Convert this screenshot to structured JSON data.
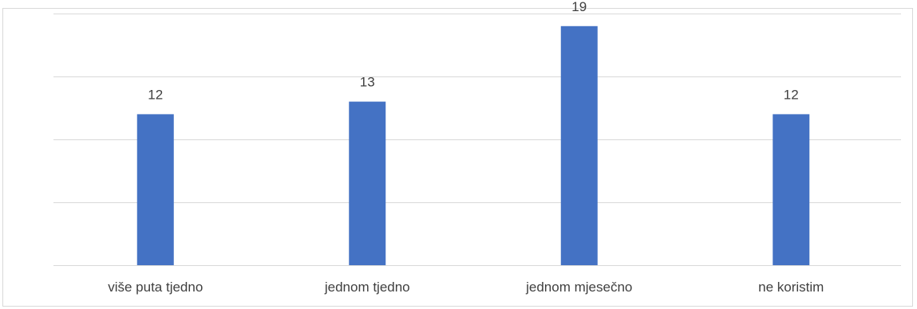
{
  "chart_data": {
    "type": "bar",
    "title": "",
    "xlabel": "",
    "ylabel": "",
    "categories": [
      "više puta tjedno",
      "jednom tjedno",
      "jednom mjesečno",
      "ne koristim"
    ],
    "values": [
      12,
      13,
      19,
      12
    ],
    "data_labels": [
      "12",
      "13",
      "19",
      "12"
    ],
    "ylim": [
      0,
      20
    ],
    "y_tick_step": 5,
    "y_tick_labels_shown": false,
    "grid": true,
    "legend": "none",
    "colors": {
      "bar": "#4472c4",
      "grid": "#d9d9d9",
      "text": "#404040",
      "background": "#ffffff"
    }
  }
}
